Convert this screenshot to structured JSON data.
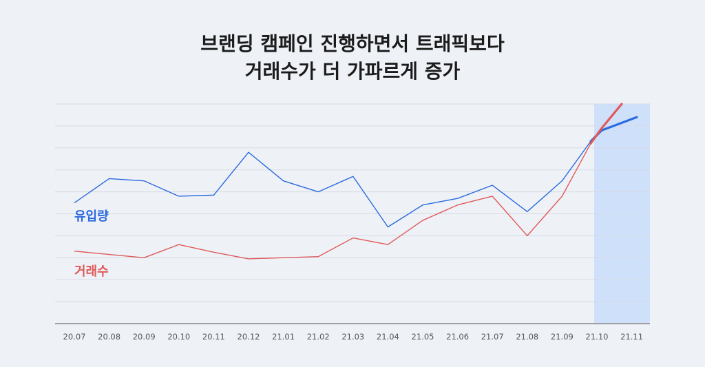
{
  "title_line1": "브랜딩 캠페인 진행하면서 트래픽보다",
  "title_line2": "거래수가 더 가파르게 증가",
  "colors": {
    "traffic": "#2a6ae0",
    "transactions": "#e05a5a",
    "highlight": "#cfe0fa",
    "grid": "#d5dae3",
    "axis": "#888888",
    "tick": "#555555"
  },
  "chart_data": {
    "type": "line",
    "categories": [
      "20.07",
      "20.08",
      "20.09",
      "20.10",
      "20.11",
      "20.12",
      "21.01",
      "21.02",
      "21.03",
      "21.04",
      "21.05",
      "21.06",
      "21.07",
      "21.08",
      "21.09",
      "21.10",
      "21.11"
    ],
    "ylim": [
      0,
      10
    ],
    "grid": true,
    "y_ticks_shown": false,
    "highlight_range": [
      "21.10",
      "21.11"
    ],
    "series": [
      {
        "name": "유입량",
        "color": "#2a6ae0",
        "values": [
          5.5,
          6.6,
          6.5,
          5.8,
          5.85,
          7.8,
          6.5,
          6.0,
          6.7,
          4.4,
          5.4,
          5.7,
          6.3,
          5.1,
          6.5,
          8.8,
          9.4
        ],
        "extension_values": [
          8.3,
          8.8
        ]
      },
      {
        "name": "거래수",
        "color": "#e05a5a",
        "values": [
          3.3,
          3.15,
          3.0,
          3.6,
          3.25,
          2.95,
          3.0,
          3.05,
          3.9,
          3.6,
          4.7,
          5.4,
          5.8,
          4.0,
          5.8,
          8.8,
          10.0
        ],
        "extension_values": [
          8.2,
          8.9
        ]
      }
    ]
  }
}
